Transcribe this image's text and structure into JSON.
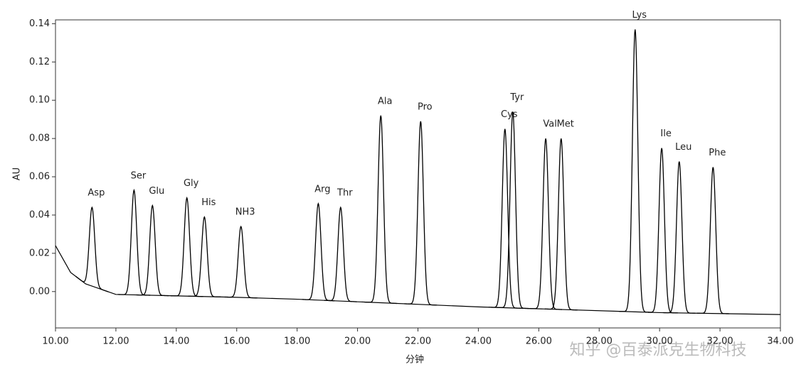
{
  "chart_data": {
    "type": "chromatogram",
    "x_label": "分钟",
    "y_label": "AU",
    "watermark": "知乎 @百泰派克生物科技",
    "color": "#000000",
    "xlim": [
      10,
      34
    ],
    "ylim": [
      -0.019,
      0.142
    ],
    "xticks": [
      {
        "value": 10,
        "label": "10.00"
      },
      {
        "value": 12,
        "label": "12.00"
      },
      {
        "value": 14,
        "label": "14.00"
      },
      {
        "value": 16,
        "label": "16.00"
      },
      {
        "value": 18,
        "label": "18.00"
      },
      {
        "value": 20,
        "label": "20.00"
      },
      {
        "value": 22,
        "label": "22.00"
      },
      {
        "value": 24,
        "label": "24.00"
      },
      {
        "value": 26,
        "label": "26.00"
      },
      {
        "value": 28,
        "label": "28.00"
      },
      {
        "value": 30,
        "label": "30.00"
      },
      {
        "value": 32,
        "label": "32.00"
      },
      {
        "value": 34,
        "label": "34.00"
      }
    ],
    "yticks": [
      {
        "value": 0,
        "label": "0.00"
      },
      0.02,
      0.04,
      0.06,
      0.08,
      {
        "value": 0.1,
        "label": "0.10"
      },
      0.12,
      0.14
    ],
    "baseline": {
      "x": [
        10,
        10.5,
        11,
        12,
        16,
        18,
        24,
        30,
        34
      ],
      "values": [
        0.024,
        0.01,
        0.004,
        -0.0015,
        -0.003,
        -0.004,
        -0.008,
        -0.011,
        -0.012
      ]
    },
    "peaks": [
      {
        "name": "Asp",
        "x": 11.21,
        "y": 0.044
      },
      {
        "name": "Ser",
        "x": 12.6,
        "y": 0.053
      },
      {
        "name": "Glu",
        "x": 13.21,
        "y": 0.045
      },
      {
        "name": "Gly",
        "x": 14.35,
        "y": 0.049
      },
      {
        "name": "His",
        "x": 14.93,
        "y": 0.039
      },
      {
        "name": "NH3",
        "x": 16.14,
        "y": 0.034
      },
      {
        "name": "Arg",
        "x": 18.7,
        "y": 0.046
      },
      {
        "name": "Thr",
        "x": 19.44,
        "y": 0.044
      },
      {
        "name": "Ala",
        "x": 20.77,
        "y": 0.092
      },
      {
        "name": "Pro",
        "x": 22.09,
        "y": 0.089
      },
      {
        "name": "Cys",
        "x": 24.88,
        "y": 0.085
      },
      {
        "name": "Tyr",
        "x": 25.14,
        "y": 0.094
      },
      {
        "name": "Val",
        "x": 26.23,
        "y": 0.08
      },
      {
        "name": "Met",
        "x": 26.74,
        "y": 0.08
      },
      {
        "name": "Lys",
        "x": 29.19,
        "y": 0.137
      },
      {
        "name": "Ile",
        "x": 30.07,
        "y": 0.075
      },
      {
        "name": "Leu",
        "x": 30.65,
        "y": 0.068
      },
      {
        "name": "Phe",
        "x": 31.77,
        "y": 0.065
      }
    ]
  }
}
